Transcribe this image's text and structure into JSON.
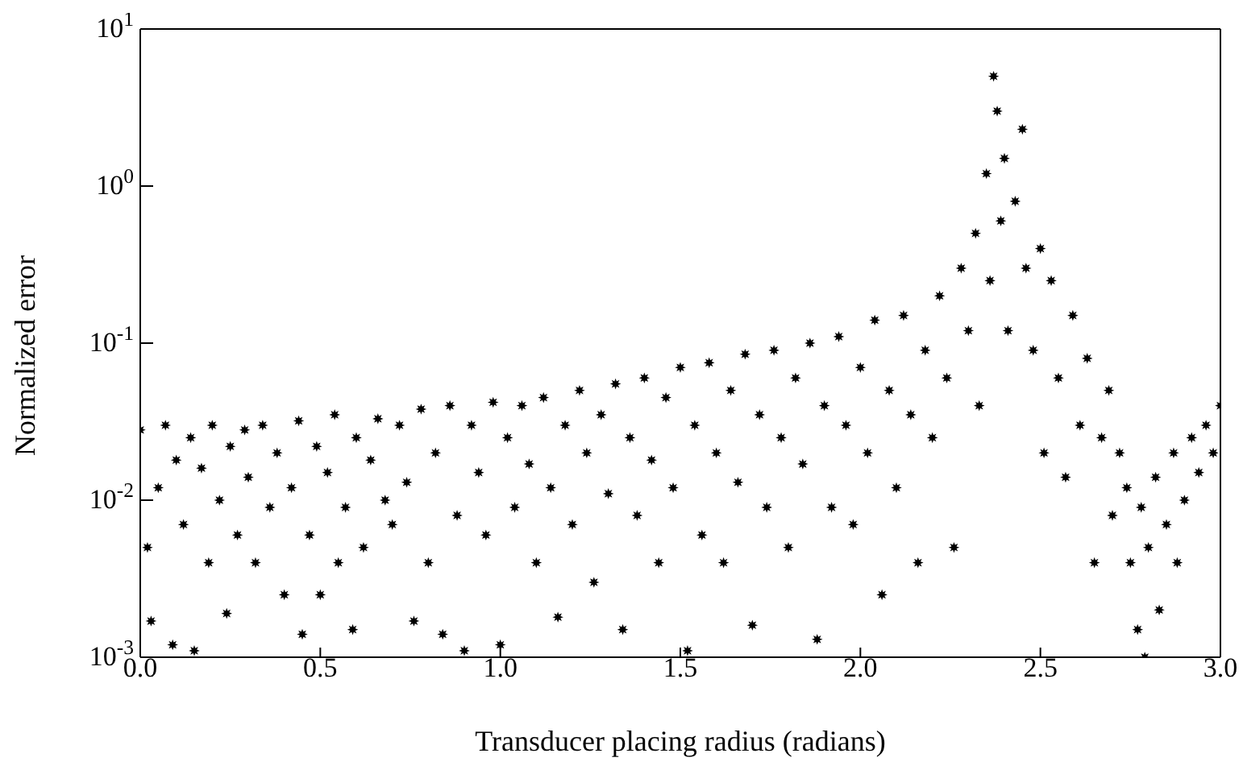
{
  "chart_data": {
    "type": "scatter",
    "xlabel": "Transducer placing radius (radians)",
    "ylabel": "Normalized error",
    "log": "y",
    "marker": "star",
    "xlim": [
      0,
      3
    ],
    "xticks": [
      {
        "value": 0,
        "label": "0.0"
      },
      0.5,
      {
        "value": 1,
        "label": "1.0"
      },
      1.5,
      {
        "value": 2,
        "label": "2.0"
      },
      2.5,
      {
        "value": 3,
        "label": "3.0"
      }
    ],
    "ylim": [
      0.001,
      10
    ],
    "yticks": [
      {
        "value": 0.001,
        "label": "10$^{-3}$"
      },
      {
        "value": 0.01,
        "label": "10$^{-2}$"
      },
      {
        "value": 0.1,
        "label": "10$^{-1}$"
      },
      {
        "value": 1,
        "label": "10$^{0}$"
      },
      {
        "value": 10,
        "label": "10$^{1}$"
      }
    ],
    "series": [
      {
        "color": "#000000",
        "x": [
          0.0,
          0.02,
          0.03,
          0.05,
          0.07,
          0.09,
          0.1,
          0.12,
          0.14,
          0.15,
          0.17,
          0.19,
          0.2,
          0.22,
          0.24,
          0.25,
          0.27,
          0.29,
          0.3,
          0.32,
          0.34,
          0.36,
          0.38,
          0.4,
          0.42,
          0.44,
          0.45,
          0.47,
          0.49,
          0.5,
          0.52,
          0.54,
          0.55,
          0.57,
          0.59,
          0.6,
          0.62,
          0.64,
          0.66,
          0.68,
          0.7,
          0.72,
          0.74,
          0.76,
          0.78,
          0.8,
          0.82,
          0.84,
          0.86,
          0.88,
          0.9,
          0.92,
          0.94,
          0.96,
          0.98,
          1.0,
          1.02,
          1.04,
          1.06,
          1.08,
          1.1,
          1.12,
          1.14,
          1.16,
          1.18,
          1.2,
          1.22,
          1.24,
          1.26,
          1.28,
          1.3,
          1.32,
          1.34,
          1.36,
          1.38,
          1.4,
          1.42,
          1.44,
          1.46,
          1.48,
          1.5,
          1.52,
          1.54,
          1.56,
          1.58,
          1.6,
          1.62,
          1.64,
          1.66,
          1.68,
          1.7,
          1.72,
          1.74,
          1.76,
          1.78,
          1.8,
          1.82,
          1.84,
          1.86,
          1.88,
          1.9,
          1.92,
          1.94,
          1.96,
          1.98,
          2.0,
          2.02,
          2.04,
          2.06,
          2.08,
          2.1,
          2.12,
          2.14,
          2.16,
          2.18,
          2.2,
          2.22,
          2.24,
          2.26,
          2.28,
          2.3,
          2.32,
          2.33,
          2.35,
          2.36,
          2.37,
          2.38,
          2.39,
          2.4,
          2.41,
          2.43,
          2.45,
          2.46,
          2.48,
          2.5,
          2.51,
          2.53,
          2.55,
          2.57,
          2.59,
          2.61,
          2.63,
          2.65,
          2.67,
          2.69,
          2.7,
          2.72,
          2.74,
          2.75,
          2.77,
          2.78,
          2.79,
          2.8,
          2.82,
          2.83,
          2.85,
          2.87,
          2.88,
          2.9,
          2.92,
          2.94,
          2.96,
          2.98,
          3.0
        ],
        "values": [
          0.028,
          0.005,
          0.0017,
          0.012,
          0.03,
          0.0012,
          0.018,
          0.007,
          0.025,
          0.0011,
          0.016,
          0.004,
          0.03,
          0.01,
          0.0019,
          0.022,
          0.006,
          0.028,
          0.014,
          0.004,
          0.03,
          0.009,
          0.02,
          0.0025,
          0.012,
          0.032,
          0.0014,
          0.006,
          0.022,
          0.0025,
          0.015,
          0.035,
          0.004,
          0.009,
          0.0015,
          0.025,
          0.005,
          0.018,
          0.033,
          0.01,
          0.007,
          0.03,
          0.013,
          0.0017,
          0.038,
          0.004,
          0.02,
          0.0014,
          0.04,
          0.008,
          0.0011,
          0.03,
          0.015,
          0.006,
          0.042,
          0.0012,
          0.025,
          0.009,
          0.04,
          0.017,
          0.004,
          0.045,
          0.012,
          0.0018,
          0.03,
          0.007,
          0.05,
          0.02,
          0.003,
          0.035,
          0.011,
          0.055,
          0.0015,
          0.025,
          0.008,
          0.06,
          0.018,
          0.004,
          0.045,
          0.012,
          0.07,
          0.0011,
          0.03,
          0.006,
          0.075,
          0.02,
          0.004,
          0.05,
          0.013,
          0.085,
          0.0016,
          0.035,
          0.009,
          0.09,
          0.025,
          0.005,
          0.06,
          0.017,
          0.1,
          0.0013,
          0.04,
          0.009,
          0.11,
          0.03,
          0.007,
          0.07,
          0.02,
          0.14,
          0.0025,
          0.05,
          0.012,
          0.15,
          0.035,
          0.004,
          0.09,
          0.025,
          0.2,
          0.06,
          0.005,
          0.3,
          0.12,
          0.5,
          0.04,
          1.2,
          0.25,
          5,
          3,
          0.6,
          1.5,
          0.12,
          0.8,
          2.3,
          0.3,
          0.09,
          0.4,
          0.02,
          0.25,
          0.06,
          0.014,
          0.15,
          0.03,
          0.08,
          0.004,
          0.025,
          0.05,
          0.008,
          0.02,
          0.012,
          0.004,
          0.0015,
          0.009,
          0.001,
          0.005,
          0.014,
          0.002,
          0.007,
          0.02,
          0.004,
          0.01,
          0.025,
          0.015,
          0.03,
          0.02,
          0.04
        ]
      }
    ]
  }
}
